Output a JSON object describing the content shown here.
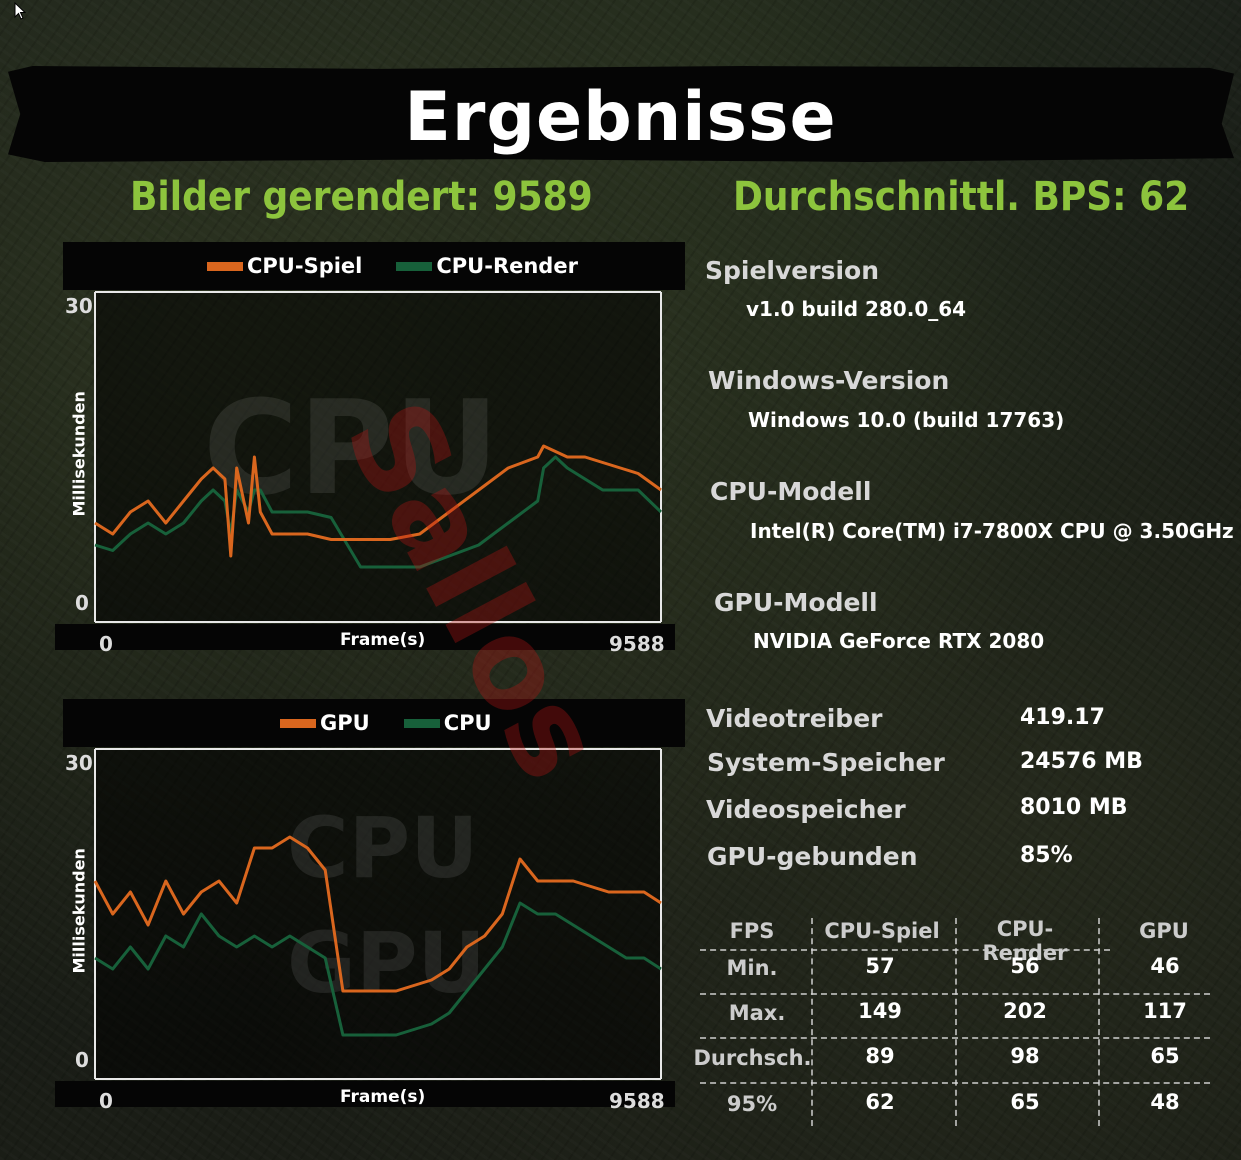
{
  "title": "Ergebnisse",
  "frames_label": "Bilder gerendert: 9589",
  "avg_fps_label": "Durchschnittl. BPS: 62",
  "colors": {
    "orange": "#d9661e",
    "green": "#17603a",
    "accent_green": "#8dc43d"
  },
  "watermark_text": "Sallos",
  "charts": [
    {
      "legend": [
        {
          "label": "CPU-Spiel",
          "color": "#d9661e"
        },
        {
          "label": "CPU-Render",
          "color": "#17603a"
        }
      ],
      "bg_text": [
        "CPU"
      ],
      "ylabel": "Millisekunden",
      "xlabel": "Frame(s)",
      "ymax_label": "30",
      "ymin_label": "0",
      "xmin_label": "0",
      "xmax_label": "9588"
    },
    {
      "legend": [
        {
          "label": "GPU",
          "color": "#d9661e"
        },
        {
          "label": "CPU",
          "color": "#17603a"
        }
      ],
      "bg_text": [
        "CPU",
        "GPU"
      ],
      "ylabel": "Millisekunden",
      "xlabel": "Frame(s)",
      "ymax_label": "30",
      "ymin_label": "0",
      "xmin_label": "0",
      "xmax_label": "9588"
    }
  ],
  "chart_data": [
    {
      "type": "line",
      "ylabel": "Millisekunden",
      "xlabel": "Frame(s)",
      "xlim": [
        0,
        9588
      ],
      "ylim": [
        0,
        30
      ],
      "x": [
        0,
        300,
        600,
        900,
        1200,
        1500,
        1800,
        2000,
        2200,
        2300,
        2400,
        2600,
        2700,
        2800,
        3000,
        3300,
        3600,
        4000,
        4500,
        5000,
        5500,
        6000,
        6500,
        7000,
        7500,
        7600,
        7800,
        8000,
        8300,
        8600,
        8900,
        9200,
        9588
      ],
      "series": [
        {
          "name": "CPU-Spiel",
          "values": [
            9,
            8,
            10,
            11,
            9,
            11,
            13,
            14,
            13,
            6,
            14,
            9,
            15,
            10,
            8,
            8,
            8,
            7.5,
            7.5,
            7.5,
            8,
            10,
            12,
            14,
            15,
            16,
            15.5,
            15,
            15,
            14.5,
            14,
            13.5,
            12
          ]
        },
        {
          "name": "CPU-Render",
          "values": [
            7,
            6.5,
            8,
            9,
            8,
            9,
            11,
            12,
            11,
            8,
            12,
            10,
            12,
            12,
            10,
            10,
            10,
            9.5,
            5,
            5,
            5,
            6,
            7,
            9,
            11,
            14,
            15,
            14,
            13,
            12,
            12,
            12,
            10
          ]
        }
      ]
    },
    {
      "type": "line",
      "ylabel": "Millisekunden",
      "xlabel": "Frame(s)",
      "xlim": [
        0,
        9588
      ],
      "ylim": [
        0,
        30
      ],
      "x": [
        0,
        300,
        600,
        900,
        1200,
        1500,
        1800,
        2100,
        2400,
        2700,
        3000,
        3300,
        3600,
        3900,
        4200,
        4500,
        4800,
        5100,
        5400,
        5700,
        6000,
        6300,
        6600,
        6900,
        7200,
        7500,
        7800,
        8100,
        8400,
        8700,
        9000,
        9300,
        9588
      ],
      "series": [
        {
          "name": "GPU",
          "values": [
            18,
            15,
            17,
            14,
            18,
            15,
            17,
            18,
            16,
            21,
            21,
            22,
            21,
            19,
            8,
            8,
            8,
            8,
            8.5,
            9,
            10,
            12,
            13,
            15,
            20,
            18,
            18,
            18,
            17.5,
            17,
            17,
            17,
            16
          ]
        },
        {
          "name": "CPU",
          "values": [
            11,
            10,
            12,
            10,
            13,
            12,
            15,
            13,
            12,
            13,
            12,
            13,
            12,
            11,
            4,
            4,
            4,
            4,
            4.5,
            5,
            6,
            8,
            10,
            12,
            16,
            15,
            15,
            14,
            13,
            12,
            11,
            11,
            10
          ]
        }
      ]
    },
    {
      "type": "table",
      "columns": [
        "FPS",
        "CPU-Spiel",
        "CPU-Render",
        "GPU"
      ],
      "rows": [
        [
          "Min.",
          "57",
          "56",
          "46"
        ],
        [
          "Max.",
          "149",
          "202",
          "117"
        ],
        [
          "Durchsch.",
          "89",
          "98",
          "65"
        ],
        [
          "95%",
          "62",
          "65",
          "48"
        ]
      ]
    }
  ],
  "info": {
    "spielversion_label": "Spielversion",
    "spielversion_value": "v1.0 build 280.0_64",
    "windows_label": "Windows-Version",
    "windows_value": "Windows 10.0 (build 17763)",
    "cpu_label": "CPU-Modell",
    "cpu_value": "Intel(R) Core(TM) i7-7800X CPU @ 3.50GHz",
    "gpu_label": "GPU-Modell",
    "gpu_value": "NVIDIA GeForce RTX 2080"
  },
  "stats": [
    {
      "label": "Videotreiber",
      "value": "419.17"
    },
    {
      "label": "System-Speicher",
      "value": "24576 MB"
    },
    {
      "label": "Videospeicher",
      "value": "8010 MB"
    },
    {
      "label": "GPU-gebunden",
      "value": "85%"
    }
  ],
  "table": {
    "headers": [
      "FPS",
      "CPU-Spiel",
      "CPU-Render",
      "GPU"
    ],
    "rows": [
      [
        "Min.",
        "57",
        "56",
        "46"
      ],
      [
        "Max.",
        "149",
        "202",
        "117"
      ],
      [
        "Durchsch.",
        "89",
        "98",
        "65"
      ],
      [
        "95%",
        "62",
        "65",
        "48"
      ]
    ]
  }
}
